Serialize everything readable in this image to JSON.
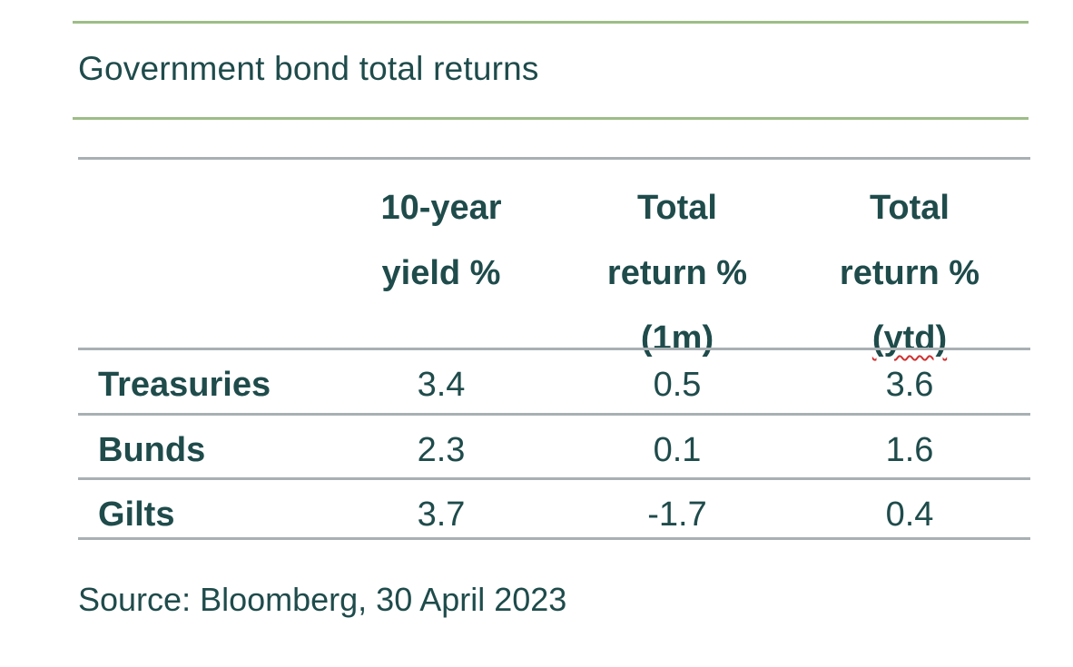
{
  "title": "Government bond total returns",
  "source": "Source: Bloomberg, 30 April 2023",
  "columns": [
    {
      "line1": "10-year",
      "line2": "yield %",
      "line3": ""
    },
    {
      "line1": "Total",
      "line2": "return %",
      "line3": "(1m)"
    },
    {
      "line1": "Total",
      "line2": "return %",
      "line3": "(ytd)"
    }
  ],
  "rows": [
    {
      "label": "Treasuries",
      "values": [
        "3.4",
        "0.5",
        "3.6"
      ]
    },
    {
      "label": "Bunds",
      "values": [
        "2.3",
        "0.1",
        "1.6"
      ]
    },
    {
      "label": "Gilts",
      "values": [
        "3.7",
        "-1.7",
        "0.4"
      ]
    }
  ],
  "colors": {
    "text": "#1f4b4b",
    "green_rule": "#9dbd86",
    "grey_rule": "#a9b0b3"
  },
  "chart_data": {
    "type": "table",
    "title": "Government bond total returns",
    "columns": [
      "10-year yield %",
      "Total return % (1m)",
      "Total return % (ytd)"
    ],
    "rows": [
      "Treasuries",
      "Bunds",
      "Gilts"
    ],
    "values": [
      [
        3.4,
        0.5,
        3.6
      ],
      [
        2.3,
        0.1,
        1.6
      ],
      [
        3.7,
        -1.7,
        0.4
      ]
    ]
  }
}
